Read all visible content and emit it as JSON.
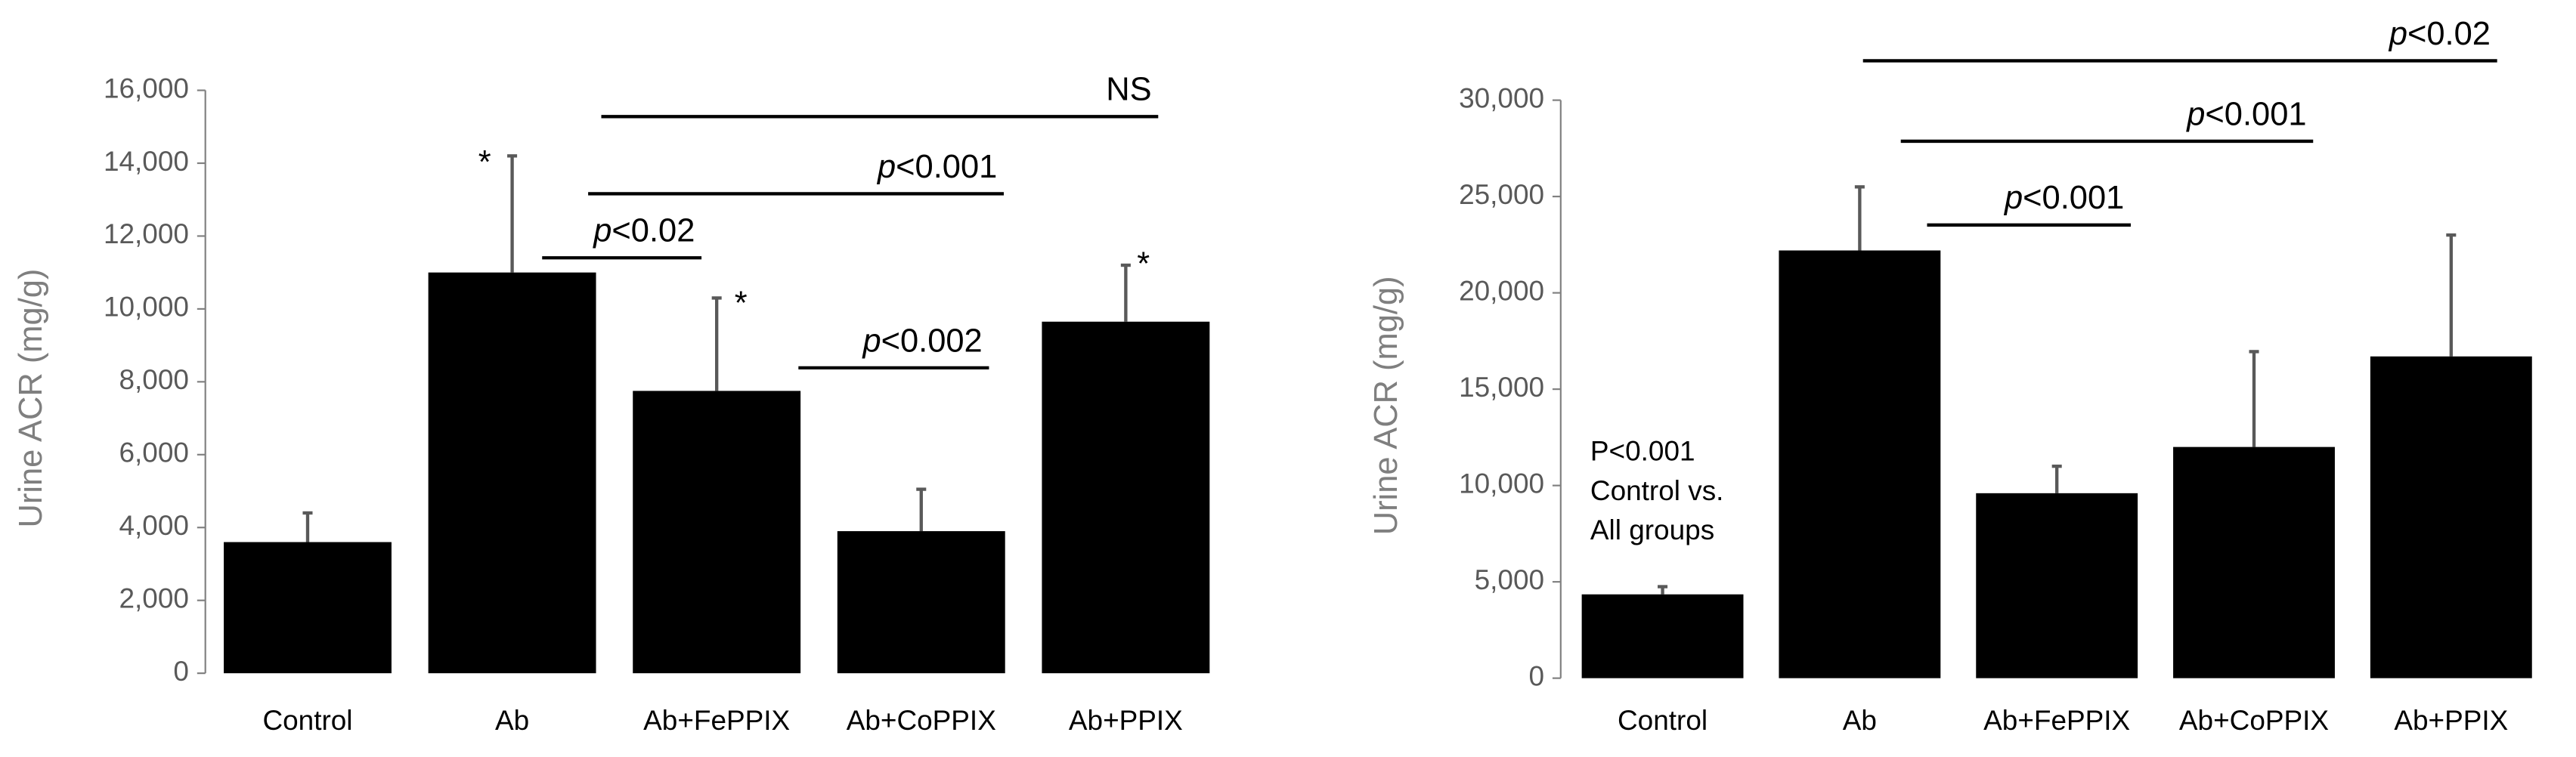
{
  "chart_data": [
    {
      "type": "bar",
      "y_label": "Urine ACR (mg/g)",
      "categories": [
        "Control",
        "Ab",
        "Ab+FePPIX",
        "Ab+CoPPIX",
        "Ab+PPIX"
      ],
      "series": [
        {
          "color": "#000000",
          "values": [
            3600,
            11000,
            7750,
            3900,
            9650
          ],
          "errors": [
            800,
            3200,
            2550,
            1150,
            1550
          ]
        }
      ],
      "ylim": [
        0,
        16000
      ],
      "yticks": [
        0,
        {
          "value": 2000,
          "label": "2,000"
        },
        {
          "value": 4000,
          "label": "4,000"
        },
        {
          "value": 6000,
          "label": "6,000"
        },
        {
          "value": 8000,
          "label": "8,000"
        },
        {
          "value": 10000,
          "label": "10,000"
        },
        {
          "value": 12000,
          "label": "12,000"
        },
        {
          "value": 14000,
          "label": "14,000"
        },
        {
          "value": 16000,
          "label": "16,000"
        }
      ],
      "brackets": [
        {
          "italic": "p",
          "label": "<0.02"
        },
        {
          "italic": "p",
          "label": "<0.001"
        },
        {
          "italic": "p",
          "label": "<0.002"
        },
        {
          "label": "NS"
        }
      ],
      "annotations": [
        "*",
        "*",
        "*"
      ]
    },
    {
      "type": "bar",
      "y_label": "Urine ACR (mg/g)",
      "categories": [
        "Control",
        "Ab",
        "Ab+FePPIX",
        "Ab+CoPPIX",
        "Ab+PPIX"
      ],
      "series": [
        {
          "color": "#000000",
          "values": [
            4350,
            22200,
            9600,
            12000,
            16700
          ],
          "errors": [
            400,
            3300,
            1400,
            4950,
            6300
          ]
        }
      ],
      "ylim": [
        0,
        30000
      ],
      "yticks": [
        0,
        {
          "value": 5000,
          "label": "5,000"
        },
        {
          "value": 10000,
          "label": "10,000"
        },
        {
          "value": 15000,
          "label": "15,000"
        },
        {
          "value": 20000,
          "label": "20,000"
        },
        {
          "value": 25000,
          "label": "25,000"
        },
        {
          "value": 30000,
          "label": "30,000"
        }
      ],
      "brackets": [
        {
          "italic": "p",
          "label": "<0.001"
        },
        {
          "italic": "p",
          "label": "<0.001"
        },
        {
          "italic": "p",
          "label": "<0.02"
        }
      ],
      "note": [
        "P<0.001",
        "Control vs.",
        "All groups"
      ]
    }
  ]
}
